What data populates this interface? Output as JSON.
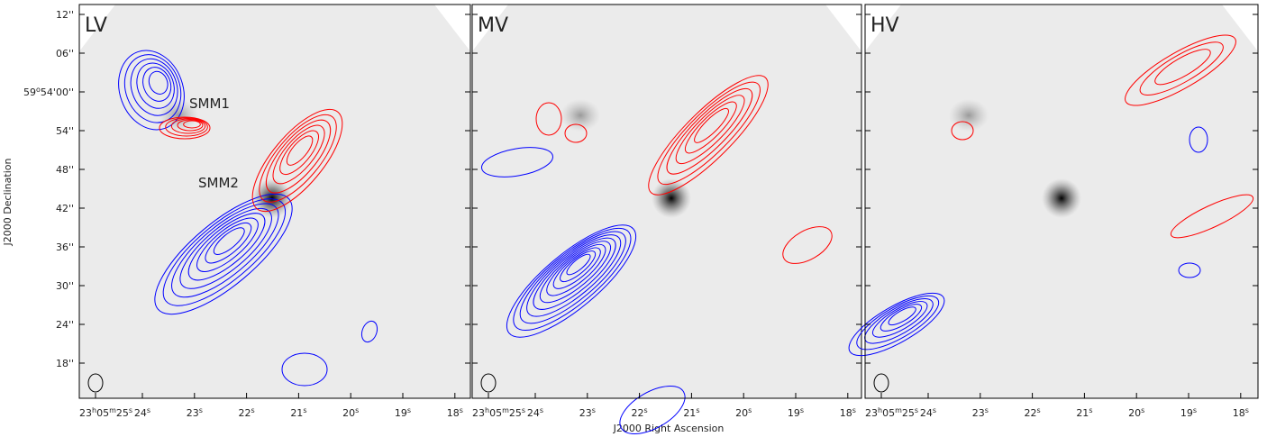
{
  "y_axis": {
    "label": "J2000 Declination",
    "ticks": [
      [
        "12''"
      ],
      [
        "06''"
      ],
      [
        "59",
        "o",
        "54'00''"
      ],
      [
        "54''"
      ],
      [
        "48''"
      ],
      [
        "42''"
      ],
      [
        "36''"
      ],
      [
        "30''"
      ],
      [
        "24''"
      ],
      [
        "18''"
      ]
    ]
  },
  "x_axis": {
    "label": "J2000 Right Ascension",
    "ticks": [
      [
        "23",
        "h",
        "05",
        "m",
        "25",
        "s"
      ],
      [
        "24",
        "s"
      ],
      [
        "23",
        "s"
      ],
      [
        "22",
        "s"
      ],
      [
        "21",
        "s"
      ],
      [
        "20",
        "s"
      ],
      [
        "19",
        "s"
      ],
      [
        "18",
        "s"
      ]
    ]
  },
  "panels": [
    {
      "label": "LV",
      "annotations": [
        "SMM1",
        "SMM2"
      ]
    },
    {
      "label": "MV"
    },
    {
      "label": "HV"
    }
  ]
}
